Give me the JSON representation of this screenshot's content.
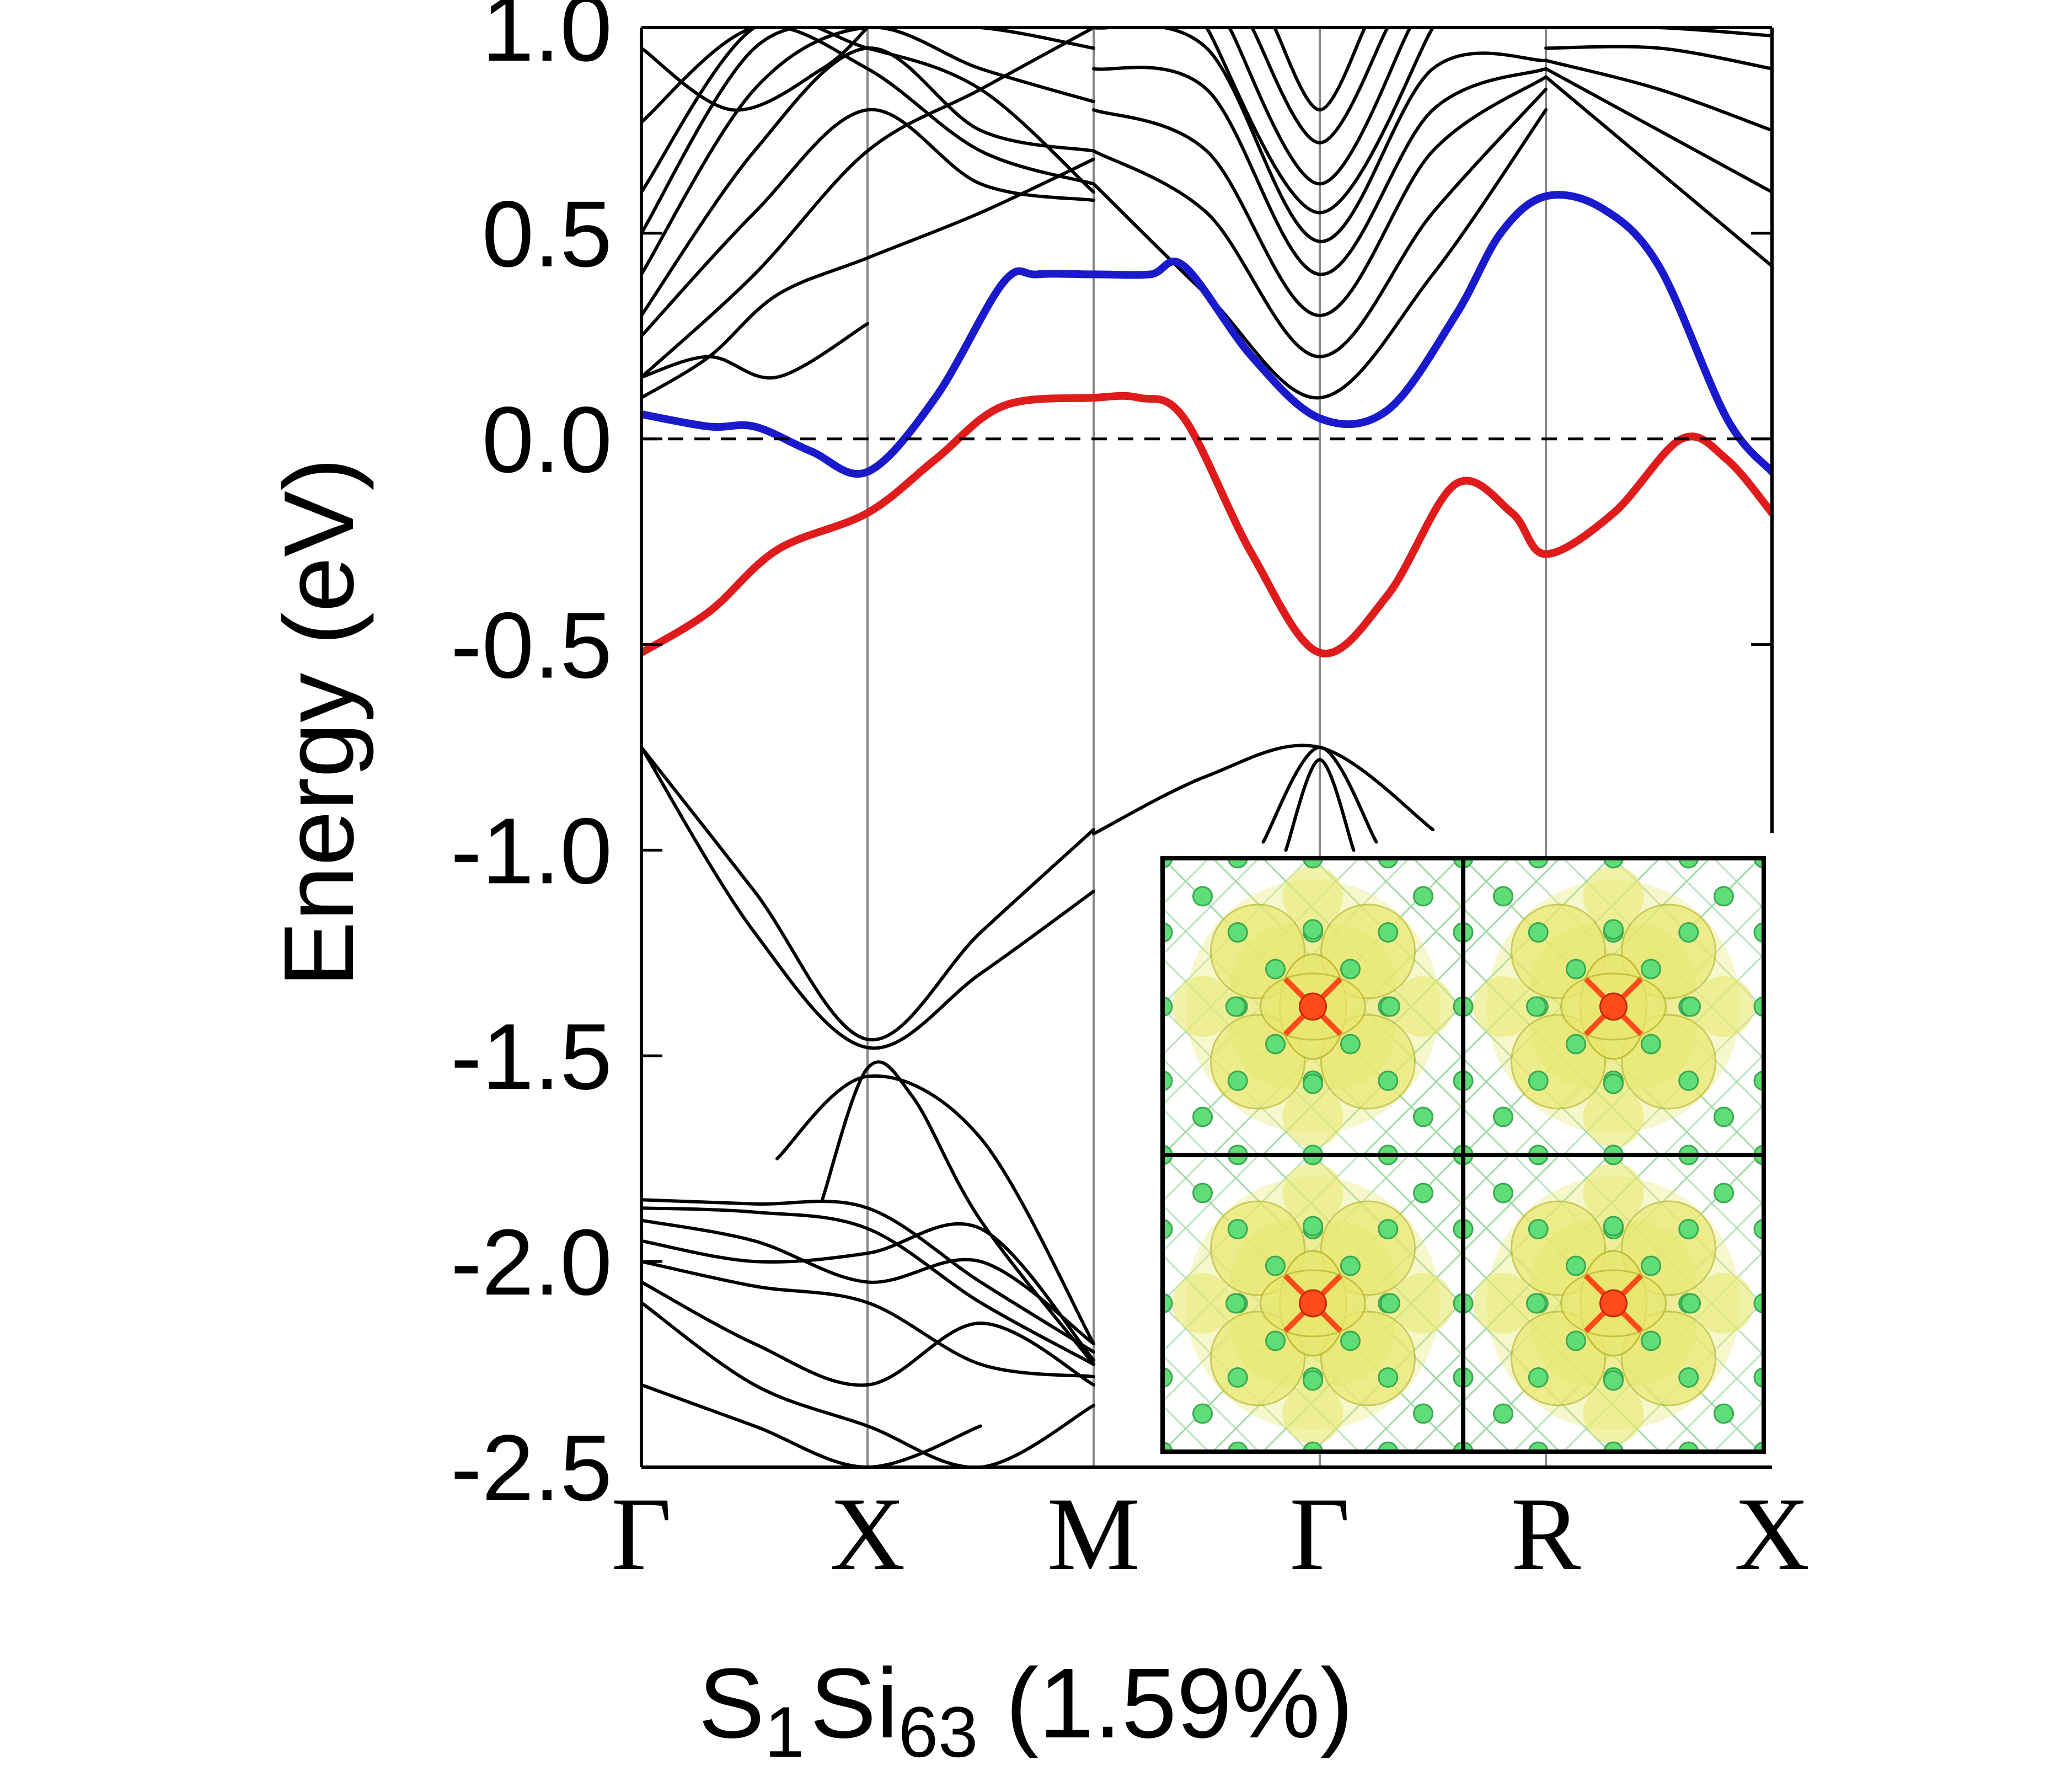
{
  "chart_data": {
    "type": "line",
    "title": "",
    "xlabel": {
      "parts": [
        {
          "text": "S",
          "sub": "1"
        },
        {
          "text": "Si",
          "sub": "63"
        },
        {
          "text": " (1.59%)",
          "sub": ""
        }
      ]
    },
    "ylabel": "Energy (eV)",
    "ylim": [
      -2.5,
      1.0
    ],
    "yticks": [
      {
        "value": 1.0,
        "label": "1.0"
      },
      {
        "value": 0.5,
        "label": "0.5"
      },
      {
        "value": 0.0,
        "label": "0.0"
      },
      {
        "value": -0.5,
        "label": "-0.5"
      },
      {
        "value": -1.0,
        "label": "-1.0"
      },
      {
        "value": -1.5,
        "label": "-1.5"
      },
      {
        "value": -2.0,
        "label": "-2.0"
      },
      {
        "value": -2.5,
        "label": "-2.5"
      }
    ],
    "kpoints": [
      {
        "label": "Γ",
        "x": 0
      },
      {
        "label": "X",
        "x": 1
      },
      {
        "label": "M",
        "x": 2
      },
      {
        "label": "Γ",
        "x": 3
      },
      {
        "label": "R",
        "x": 4
      },
      {
        "label": "X",
        "x": 5
      }
    ],
    "fermi_level": 0.0,
    "colors": {
      "band_black": "#000000",
      "band_blue": "#1a1acc",
      "band_red": "#e01b1b",
      "kline": "#888888"
    },
    "series": [
      {
        "color": "#1a1acc",
        "role": "highlight-upper",
        "x": [
          0,
          0.3,
          0.5,
          0.75,
          1.0,
          1.3,
          1.6,
          1.75,
          2.0,
          2.25,
          2.4,
          2.7,
          3.0,
          3.3,
          3.6,
          3.8,
          4.0,
          4.25,
          4.5,
          4.8,
          5.0
        ],
        "y": [
          0.06,
          0.03,
          0.03,
          -0.03,
          -0.08,
          0.1,
          0.38,
          0.4,
          0.4,
          0.4,
          0.42,
          0.2,
          0.05,
          0.07,
          0.3,
          0.5,
          0.59,
          0.56,
          0.42,
          0.05,
          -0.08
        ]
      },
      {
        "color": "#e01b1b",
        "role": "highlight-lower",
        "x": [
          0,
          0.3,
          0.6,
          1.0,
          1.3,
          1.6,
          2.0,
          2.2,
          2.4,
          2.7,
          3.0,
          3.3,
          3.6,
          3.85,
          4.0,
          4.3,
          4.6,
          4.8,
          5.0
        ],
        "y": [
          -0.52,
          -0.42,
          -0.27,
          -0.18,
          -0.05,
          0.08,
          0.1,
          0.1,
          0.05,
          -0.28,
          -0.52,
          -0.38,
          -0.11,
          -0.18,
          -0.28,
          -0.18,
          0.0,
          -0.05,
          -0.18
        ]
      },
      {
        "color": "#000000",
        "x": [
          0,
          0.5,
          1.0,
          1.5,
          2.0
        ],
        "y": [
          -0.75,
          -1.1,
          -1.46,
          -1.2,
          -0.95
        ]
      },
      {
        "color": "#000000",
        "x": [
          0,
          0.5,
          1.0,
          1.5,
          2.0
        ],
        "y": [
          -0.75,
          -1.2,
          -1.48,
          -1.3,
          -1.1
        ]
      },
      {
        "color": "#000000",
        "x": [
          2.0,
          2.5,
          3.0,
          3.5
        ],
        "y": [
          -0.96,
          -0.82,
          -0.75,
          -0.95
        ]
      },
      {
        "color": "#000000",
        "x": [
          2.75,
          3.0,
          3.25
        ],
        "y": [
          -0.98,
          -0.75,
          -0.98
        ]
      },
      {
        "color": "#000000",
        "x": [
          2.85,
          3.0,
          3.15
        ],
        "y": [
          -1.0,
          -0.78,
          -1.0
        ]
      },
      {
        "color": "#000000",
        "x": [
          0,
          0.5,
          1.0,
          1.5,
          2.0
        ],
        "y": [
          -1.85,
          -1.86,
          -1.87,
          -2.05,
          -2.22
        ]
      },
      {
        "color": "#000000",
        "x": [
          0,
          0.5,
          1.0,
          1.5,
          2.0
        ],
        "y": [
          -1.87,
          -1.88,
          -1.92,
          -2.1,
          -2.25
        ]
      },
      {
        "color": "#000000",
        "x": [
          0,
          0.5,
          1.0,
          1.5,
          2.0
        ],
        "y": [
          -1.9,
          -1.95,
          -2.05,
          -2.0,
          -2.2
        ]
      },
      {
        "color": "#000000",
        "x": [
          0,
          0.5,
          1.0,
          1.5,
          2.0
        ],
        "y": [
          -1.95,
          -2.0,
          -1.98,
          -1.92,
          -2.24
        ]
      },
      {
        "color": "#000000",
        "x": [
          0,
          0.5,
          1.0,
          1.5,
          2.0
        ],
        "y": [
          -2.0,
          -2.06,
          -2.1,
          -2.25,
          -2.28
        ]
      },
      {
        "color": "#000000",
        "x": [
          0,
          0.5,
          1.0,
          1.5,
          2.0
        ],
        "y": [
          -2.05,
          -2.2,
          -2.3,
          -2.15,
          -2.3
        ]
      },
      {
        "color": "#000000",
        "x": [
          0,
          0.5,
          1.0,
          1.5,
          2.0
        ],
        "y": [
          -2.1,
          -2.3,
          -2.4,
          -2.5,
          -2.35
        ]
      },
      {
        "color": "#000000",
        "x": [
          0.6,
          1.0,
          1.5,
          2.0
        ],
        "y": [
          -1.75,
          -1.55,
          -1.7,
          -2.2
        ]
      },
      {
        "color": "#000000",
        "x": [
          0.8,
          1.0,
          1.2,
          1.5,
          2.0
        ],
        "y": [
          -1.85,
          -1.53,
          -1.6,
          -1.9,
          -2.25
        ]
      },
      {
        "color": "#000000",
        "x": [
          0,
          0.5,
          1.0,
          1.5
        ],
        "y": [
          -2.3,
          -2.4,
          -2.5,
          -2.4
        ]
      },
      {
        "color": "#000000",
        "x": [
          0,
          0.3,
          0.6,
          1.0,
          1.5,
          2.0
        ],
        "y": [
          0.1,
          0.2,
          0.35,
          0.44,
          0.55,
          0.68
        ]
      },
      {
        "color": "#000000",
        "x": [
          0,
          0.5,
          1.0,
          1.5,
          2.0
        ],
        "y": [
          0.15,
          0.4,
          0.7,
          0.85,
          1.0
        ]
      },
      {
        "color": "#000000",
        "x": [
          0,
          0.5,
          1.0,
          1.5,
          2.0
        ],
        "y": [
          0.25,
          0.55,
          0.8,
          0.62,
          0.58
        ]
      },
      {
        "color": "#000000",
        "x": [
          0,
          0.5,
          1.0,
          1.5,
          2.0
        ],
        "y": [
          0.3,
          0.7,
          0.95,
          0.75,
          0.7
        ]
      },
      {
        "color": "#000000",
        "x": [
          0,
          0.5,
          1.0,
          1.5,
          2.0
        ],
        "y": [
          0.4,
          0.85,
          1.0,
          0.9,
          0.82
        ]
      },
      {
        "color": "#000000",
        "x": [
          0,
          0.5,
          1.0,
          1.5,
          2.0
        ],
        "y": [
          0.5,
          0.95,
          1.0,
          1.0,
          0.95
        ]
      },
      {
        "color": "#000000",
        "x": [
          0,
          0.5,
          1.0,
          1.5,
          2.0
        ],
        "y": [
          0.6,
          1.0,
          0.95,
          0.85,
          0.6
        ]
      },
      {
        "color": "#000000",
        "x": [
          0,
          0.5,
          1.0,
          1.5,
          2.0
        ],
        "y": [
          0.77,
          1.0,
          0.9,
          0.7,
          0.62
        ]
      },
      {
        "color": "#000000",
        "x": [
          0,
          0.4,
          0.8,
          1.0
        ],
        "y": [
          0.95,
          0.8,
          0.9,
          1.0
        ]
      },
      {
        "color": "#000000",
        "x": [
          0,
          0.3,
          0.6,
          1.0
        ],
        "y": [
          0.15,
          0.2,
          0.15,
          0.28
        ]
      },
      {
        "color": "#000000",
        "x": [
          2.0,
          2.5,
          3.0,
          3.5,
          4.0
        ],
        "y": [
          0.62,
          0.35,
          0.1,
          0.4,
          0.8
        ]
      },
      {
        "color": "#000000",
        "x": [
          2.0,
          2.5,
          3.0,
          3.5,
          4.0
        ],
        "y": [
          0.7,
          0.55,
          0.2,
          0.55,
          0.85
        ]
      },
      {
        "color": "#000000",
        "x": [
          2.0,
          2.5,
          3.0,
          3.5,
          4.0
        ],
        "y": [
          0.8,
          0.7,
          0.3,
          0.7,
          0.88
        ]
      },
      {
        "color": "#000000",
        "x": [
          2.0,
          2.5,
          3.0,
          3.5,
          4.0
        ],
        "y": [
          0.9,
          0.85,
          0.4,
          0.8,
          0.9
        ]
      },
      {
        "color": "#000000",
        "x": [
          2.0,
          2.5,
          3.0,
          3.5,
          4.0
        ],
        "y": [
          1.0,
          0.95,
          0.48,
          0.9,
          0.92
        ]
      },
      {
        "color": "#000000",
        "x": [
          2.5,
          3.0,
          3.5
        ],
        "y": [
          1.0,
          0.55,
          1.0
        ]
      },
      {
        "color": "#000000",
        "x": [
          2.6,
          3.0,
          3.4
        ],
        "y": [
          1.0,
          0.62,
          1.0
        ]
      },
      {
        "color": "#000000",
        "x": [
          2.7,
          3.0,
          3.3
        ],
        "y": [
          1.0,
          0.72,
          1.0
        ]
      },
      {
        "color": "#000000",
        "x": [
          2.8,
          3.0,
          3.2
        ],
        "y": [
          1.0,
          0.8,
          1.0
        ]
      },
      {
        "color": "#000000",
        "x": [
          4.0,
          4.5,
          5.0
        ],
        "y": [
          0.88,
          0.65,
          0.42
        ]
      },
      {
        "color": "#000000",
        "x": [
          4.0,
          4.5,
          5.0
        ],
        "y": [
          0.9,
          0.75,
          0.6
        ]
      },
      {
        "color": "#000000",
        "x": [
          4.0,
          4.5,
          5.0
        ],
        "y": [
          0.92,
          0.85,
          0.75
        ]
      },
      {
        "color": "#000000",
        "x": [
          4.0,
          4.5,
          5.0
        ],
        "y": [
          0.95,
          0.95,
          0.9
        ]
      },
      {
        "color": "#000000",
        "x": [
          4.0,
          4.5,
          5.0
        ],
        "y": [
          1.0,
          1.0,
          0.98
        ]
      }
    ]
  },
  "inset": {
    "colors": {
      "frame": "#000000",
      "isosurface": "#e8e870",
      "isosurface_dark": "#b8b830",
      "si_atom": "#5fdd77",
      "s_atom": "#ff4a1a"
    }
  }
}
